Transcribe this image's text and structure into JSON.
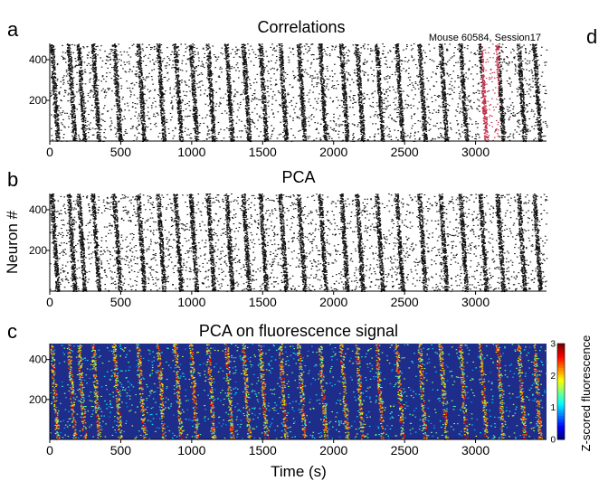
{
  "figure": {
    "colorbar_label": "Z-scored fluorescence",
    "colorbar_ticks": [
      "0",
      "1",
      "2",
      "3"
    ],
    "annotation": "Mouse 60584, Session17",
    "ylabel": "Neuron #",
    "xlabel": "Time (s)",
    "extra_panel_letter": "d"
  },
  "chart_data": [
    {
      "type": "heatmap",
      "panel": "a",
      "title": "Correlations",
      "xlabel": "Time (s)",
      "ylabel": "Neuron #",
      "xlim": [
        0,
        3500
      ],
      "ylim": [
        0,
        480
      ],
      "x_ticks": [
        0,
        500,
        1000,
        1500,
        2000,
        2500,
        3000
      ],
      "y_ticks": [
        200,
        400
      ],
      "colormap": "binary",
      "highlight_band": {
        "x_start": 3040,
        "x_end": 3160,
        "color": "#c0304a"
      },
      "sequence_onsets_s": [
        10,
        130,
        200,
        300,
        450,
        620,
        760,
        880,
        990,
        1110,
        1240,
        1360,
        1480,
        1620,
        1750,
        1900,
        2050,
        2160,
        2300,
        2440,
        2600,
        2750,
        2890,
        3030,
        3150,
        3300,
        3410
      ]
    },
    {
      "type": "heatmap",
      "panel": "b",
      "title": "PCA",
      "xlabel": "Time (s)",
      "ylabel": "Neuron #",
      "xlim": [
        0,
        3500
      ],
      "ylim": [
        0,
        480
      ],
      "x_ticks": [
        0,
        500,
        1000,
        1500,
        2000,
        2500,
        3000
      ],
      "y_ticks": [
        200,
        400
      ],
      "colormap": "binary",
      "sequence_onsets_s": [
        10,
        130,
        200,
        300,
        450,
        620,
        760,
        880,
        990,
        1110,
        1240,
        1360,
        1480,
        1620,
        1750,
        1900,
        2050,
        2160,
        2300,
        2440,
        2600,
        2750,
        2890,
        3030,
        3150,
        3300,
        3410
      ]
    },
    {
      "type": "heatmap",
      "panel": "c",
      "title": "PCA on fluorescence signal",
      "xlabel": "Time (s)",
      "ylabel": "Neuron #",
      "xlim": [
        0,
        3500
      ],
      "ylim": [
        0,
        480
      ],
      "x_ticks": [
        0,
        500,
        1000,
        1500,
        2000,
        2500,
        3000
      ],
      "y_ticks": [
        200,
        400
      ],
      "colormap": "jet",
      "zlim": [
        0,
        3
      ],
      "colorbar_label": "Z-scored fluorescence",
      "sequence_onsets_s": [
        10,
        130,
        200,
        300,
        450,
        620,
        760,
        880,
        990,
        1110,
        1240,
        1360,
        1480,
        1620,
        1750,
        1900,
        2050,
        2160,
        2300,
        2440,
        2600,
        2750,
        2890,
        3030,
        3150,
        3300,
        3410
      ]
    }
  ],
  "colors": {
    "ink": "#111111",
    "highlight": "#c0304a",
    "jet_low": "#1f2d8a"
  }
}
